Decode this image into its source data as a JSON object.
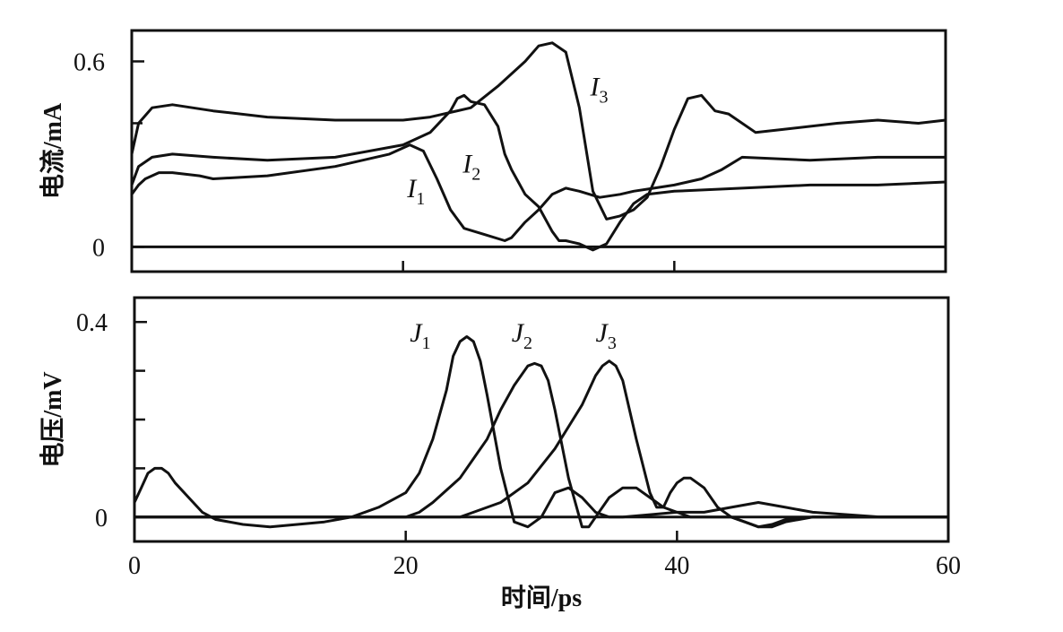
{
  "chart_data": [
    {
      "type": "line",
      "panel": "top",
      "title": "",
      "xlabel": "",
      "ylabel": "电流/mA",
      "xlim": [
        0,
        60
      ],
      "ylim": [
        -0.08,
        0.7
      ],
      "yticks": [
        0,
        0.6
      ],
      "ytick_labels": [
        "0",
        "0.6"
      ],
      "minor_yticks": [
        0.4
      ],
      "xticks": [
        20,
        40
      ],
      "zero_line": true,
      "series": [
        {
          "name": "I1",
          "x": [
            0,
            0.5,
            1,
            2,
            3,
            5,
            6,
            10,
            15,
            19,
            20.5,
            21.5,
            22.5,
            23.5,
            24.5,
            26,
            27.5,
            28,
            29,
            30,
            31,
            32,
            33,
            34.5,
            36,
            37,
            38.5,
            40,
            42,
            43.5,
            45,
            50,
            55,
            58,
            60
          ],
          "y": [
            0.17,
            0.2,
            0.22,
            0.24,
            0.24,
            0.23,
            0.22,
            0.23,
            0.26,
            0.3,
            0.33,
            0.31,
            0.22,
            0.12,
            0.06,
            0.04,
            0.02,
            0.03,
            0.08,
            0.12,
            0.17,
            0.19,
            0.18,
            0.16,
            0.17,
            0.18,
            0.19,
            0.2,
            0.22,
            0.25,
            0.29,
            0.28,
            0.29,
            0.29,
            0.29
          ]
        },
        {
          "name": "I2",
          "x": [
            0,
            0.5,
            1.5,
            3,
            6,
            10,
            15,
            20,
            22,
            23.5,
            24,
            24.5,
            25,
            26,
            27,
            27.5,
            28,
            28.5,
            29,
            30,
            31,
            31.5,
            32,
            33,
            34,
            35,
            36,
            37,
            38,
            40,
            45,
            50,
            55,
            60
          ],
          "y": [
            0.2,
            0.26,
            0.29,
            0.3,
            0.29,
            0.28,
            0.29,
            0.33,
            0.37,
            0.44,
            0.48,
            0.49,
            0.47,
            0.46,
            0.39,
            0.3,
            0.25,
            0.21,
            0.17,
            0.13,
            0.05,
            0.02,
            0.02,
            0.01,
            -0.01,
            0.01,
            0.08,
            0.14,
            0.17,
            0.18,
            0.19,
            0.2,
            0.2,
            0.21
          ]
        },
        {
          "name": "I3",
          "x": [
            0,
            0.5,
            1.5,
            3,
            6,
            10,
            15,
            20,
            22,
            25,
            27,
            29,
            30,
            31,
            32,
            33,
            34,
            35,
            36,
            37,
            38,
            39,
            40,
            41,
            42,
            43,
            44,
            46,
            48,
            52,
            55,
            58,
            60
          ],
          "y": [
            0.3,
            0.4,
            0.45,
            0.46,
            0.44,
            0.42,
            0.41,
            0.41,
            0.42,
            0.45,
            0.52,
            0.6,
            0.65,
            0.66,
            0.63,
            0.45,
            0.18,
            0.09,
            0.1,
            0.12,
            0.16,
            0.26,
            0.38,
            0.48,
            0.49,
            0.44,
            0.43,
            0.37,
            0.38,
            0.4,
            0.41,
            0.4,
            0.41
          ]
        }
      ],
      "curve_labels": [
        {
          "text": "I",
          "sub": "1",
          "series": "I1",
          "x": 20.3,
          "y": 0.16
        },
        {
          "text": "I",
          "sub": "2",
          "series": "I2",
          "x": 24.4,
          "y": 0.24
        },
        {
          "text": "I",
          "sub": "3",
          "series": "I3",
          "x": 33.8,
          "y": 0.49
        }
      ]
    },
    {
      "type": "line",
      "panel": "bottom",
      "title": "",
      "xlabel": "时间/ps",
      "ylabel": "电压/mV",
      "xlim": [
        0,
        60
      ],
      "ylim": [
        -0.05,
        0.45
      ],
      "xticks": [
        0,
        20,
        40,
        60
      ],
      "xtick_labels": [
        "0",
        "20",
        "40",
        "60"
      ],
      "yticks": [
        0,
        0.4
      ],
      "ytick_labels": [
        "0",
        "0.4"
      ],
      "minor_yticks": [
        0.1,
        0.2,
        0.3
      ],
      "zero_line": true,
      "series": [
        {
          "name": "J1",
          "x": [
            0,
            0.5,
            1,
            1.5,
            2,
            2.5,
            3,
            4,
            5,
            6,
            8,
            10,
            12,
            14,
            16,
            18,
            20,
            21,
            22,
            23,
            23.5,
            24,
            24.5,
            25,
            25.5,
            26,
            27,
            28,
            29,
            30,
            31,
            32,
            33,
            34,
            35,
            36,
            38,
            40,
            42,
            44,
            46,
            48,
            50,
            55,
            60
          ],
          "y": [
            0.03,
            0.06,
            0.09,
            0.1,
            0.1,
            0.09,
            0.07,
            0.04,
            0.01,
            -0.005,
            -0.015,
            -0.02,
            -0.015,
            -0.01,
            0.0,
            0.02,
            0.05,
            0.09,
            0.16,
            0.26,
            0.33,
            0.36,
            0.37,
            0.36,
            0.32,
            0.25,
            0.1,
            -0.01,
            -0.02,
            0.0,
            0.05,
            0.06,
            0.04,
            0.01,
            0.0,
            0.0,
            0.005,
            0.01,
            0.01,
            0.02,
            0.03,
            0.02,
            0.01,
            0.0,
            0.0
          ]
        },
        {
          "name": "J2",
          "x": [
            0,
            20,
            21,
            22,
            24,
            26,
            27,
            28,
            29,
            29.5,
            30,
            30.5,
            31,
            32,
            33,
            33.5,
            34,
            35,
            36,
            37,
            38,
            39,
            40,
            41,
            42,
            43,
            44,
            45,
            46,
            47,
            48,
            50,
            52,
            55,
            60
          ],
          "y": [
            0.0,
            0.0,
            0.01,
            0.03,
            0.08,
            0.16,
            0.22,
            0.27,
            0.31,
            0.315,
            0.31,
            0.28,
            0.22,
            0.08,
            -0.02,
            -0.02,
            0.0,
            0.04,
            0.06,
            0.06,
            0.04,
            0.02,
            0.01,
            0.0,
            0.0,
            0.0,
            0.0,
            -0.01,
            -0.02,
            -0.02,
            -0.01,
            0.0,
            0.0,
            0.0,
            0.0
          ]
        },
        {
          "name": "J3",
          "x": [
            0,
            24,
            25,
            27,
            29,
            31,
            33,
            34,
            34.5,
            35,
            35.5,
            36,
            37,
            38,
            38.5,
            39,
            39.5,
            40,
            40.5,
            41,
            41.5,
            42,
            43,
            44,
            45,
            46,
            47,
            48,
            50,
            52,
            55,
            60
          ],
          "y": [
            0.0,
            0.0,
            0.01,
            0.03,
            0.07,
            0.14,
            0.23,
            0.29,
            0.31,
            0.32,
            0.31,
            0.28,
            0.16,
            0.05,
            0.02,
            0.02,
            0.05,
            0.07,
            0.08,
            0.08,
            0.07,
            0.06,
            0.02,
            0.0,
            -0.01,
            -0.02,
            -0.015,
            -0.005,
            0.0,
            0.0,
            0.0,
            0.0
          ]
        }
      ],
      "curve_labels": [
        {
          "text": "J",
          "sub": "1",
          "series": "J1",
          "x": 20.3,
          "y": 0.36
        },
        {
          "text": "J",
          "sub": "2",
          "series": "J2",
          "x": 27.8,
          "y": 0.36
        },
        {
          "text": "J",
          "sub": "3",
          "series": "J3",
          "x": 34.0,
          "y": 0.36
        }
      ]
    }
  ]
}
